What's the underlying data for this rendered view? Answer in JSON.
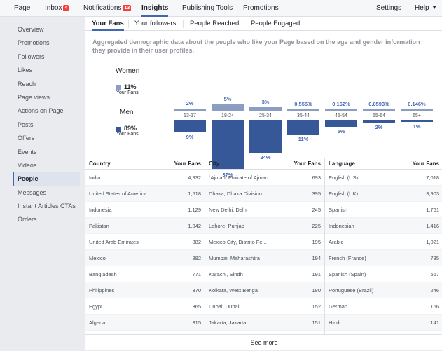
{
  "topnav": {
    "items": [
      {
        "label": "Page"
      },
      {
        "label": "Inbox",
        "badge": "4"
      },
      {
        "label": "Notifications",
        "badge": "13"
      },
      {
        "label": "Insights"
      },
      {
        "label": "Publishing Tools"
      },
      {
        "label": "Promotions"
      },
      {
        "label": "Settings"
      },
      {
        "label": "Help"
      }
    ]
  },
  "sidebar": {
    "items": [
      {
        "label": "Overview"
      },
      {
        "label": "Promotions"
      },
      {
        "label": "Followers"
      },
      {
        "label": "Likes"
      },
      {
        "label": "Reach"
      },
      {
        "label": "Page views"
      },
      {
        "label": "Actions on Page"
      },
      {
        "label": "Posts"
      },
      {
        "label": "Offers"
      },
      {
        "label": "Events"
      },
      {
        "label": "Videos"
      },
      {
        "label": "People"
      },
      {
        "label": "Messages"
      },
      {
        "label": "Instant Articles CTAs"
      },
      {
        "label": "Orders"
      }
    ],
    "active_index": 11
  },
  "tabs": [
    {
      "label": "Your Fans"
    },
    {
      "label": "Your followers"
    },
    {
      "label": "People Reached"
    },
    {
      "label": "People Engaged"
    }
  ],
  "description": "Aggregated demographic data about the people who like your Page based on the age and gender information they provide in their user profiles.",
  "legend": {
    "women": {
      "title": "Women",
      "pct": "11%",
      "sub": "Your Fans"
    },
    "men": {
      "title": "Men",
      "pct": "89%",
      "sub": "Your Fans"
    }
  },
  "colors": {
    "women": "#8b9dc3",
    "men": "#365899",
    "accent": "#4267b2"
  },
  "chart_data": {
    "type": "bar",
    "categories": [
      "13-17",
      "18-24",
      "25-34",
      "35-44",
      "45-54",
      "55-64",
      "65+"
    ],
    "series": [
      {
        "name": "Women",
        "values": [
          2,
          5,
          3,
          0.555,
          0.162,
          0.0593,
          0.146
        ],
        "labels": [
          "2%",
          "5%",
          "3%",
          "0.555%",
          "0.162%",
          "0.0593%",
          "0.146%"
        ]
      },
      {
        "name": "Men",
        "values": [
          9,
          37,
          24,
          11,
          5,
          2,
          1
        ],
        "labels": [
          "9%",
          "37%",
          "24%",
          "11%",
          "5%",
          "2%",
          "1%"
        ]
      }
    ]
  },
  "tables": [
    {
      "col1": "Country",
      "col2": "Your Fans",
      "rows": [
        [
          "India",
          "4,932"
        ],
        [
          "United States of America",
          "1,518"
        ],
        [
          "Indonesia",
          "1,129"
        ],
        [
          "Pakistan",
          "1,042"
        ],
        [
          "United Arab Emirates",
          "882"
        ],
        [
          "Mexico",
          "882"
        ],
        [
          "Bangladesh",
          "771"
        ],
        [
          "Philippines",
          "370"
        ],
        [
          "Egypt",
          "365"
        ],
        [
          "Algeria",
          "315"
        ]
      ]
    },
    {
      "col1": "City",
      "col2": "Your Fans",
      "rows": [
        [
          "`Ajman, Emirate of Ajman",
          "693"
        ],
        [
          "Dhaka, Dhaka Division",
          "395"
        ],
        [
          "New Delhi, Delhi",
          "245"
        ],
        [
          "Lahore, Punjab",
          "225"
        ],
        [
          "Mexico City, Distrito Fe...",
          "195"
        ],
        [
          "Mumbai, Maharashtra",
          "194"
        ],
        [
          "Karachi, Sindh",
          "191"
        ],
        [
          "Kolkata, West Bengal",
          "180"
        ],
        [
          "Dubai, Dubai",
          "152"
        ],
        [
          "Jakarta, Jakarta",
          "151"
        ]
      ]
    },
    {
      "col1": "Language",
      "col2": "Your Fans",
      "rows": [
        [
          "English (US)",
          "7,018"
        ],
        [
          "English (UK)",
          "3,903"
        ],
        [
          "Spanish",
          "1,761"
        ],
        [
          "Indonesian",
          "1,416"
        ],
        [
          "Arabic",
          "1,021"
        ],
        [
          "French (France)",
          "735"
        ],
        [
          "Spanish (Spain)",
          "567"
        ],
        [
          "Portuguese (Brazil)",
          "246"
        ],
        [
          "German",
          "166"
        ],
        [
          "Hindi",
          "141"
        ]
      ]
    }
  ],
  "see_more": "See more"
}
